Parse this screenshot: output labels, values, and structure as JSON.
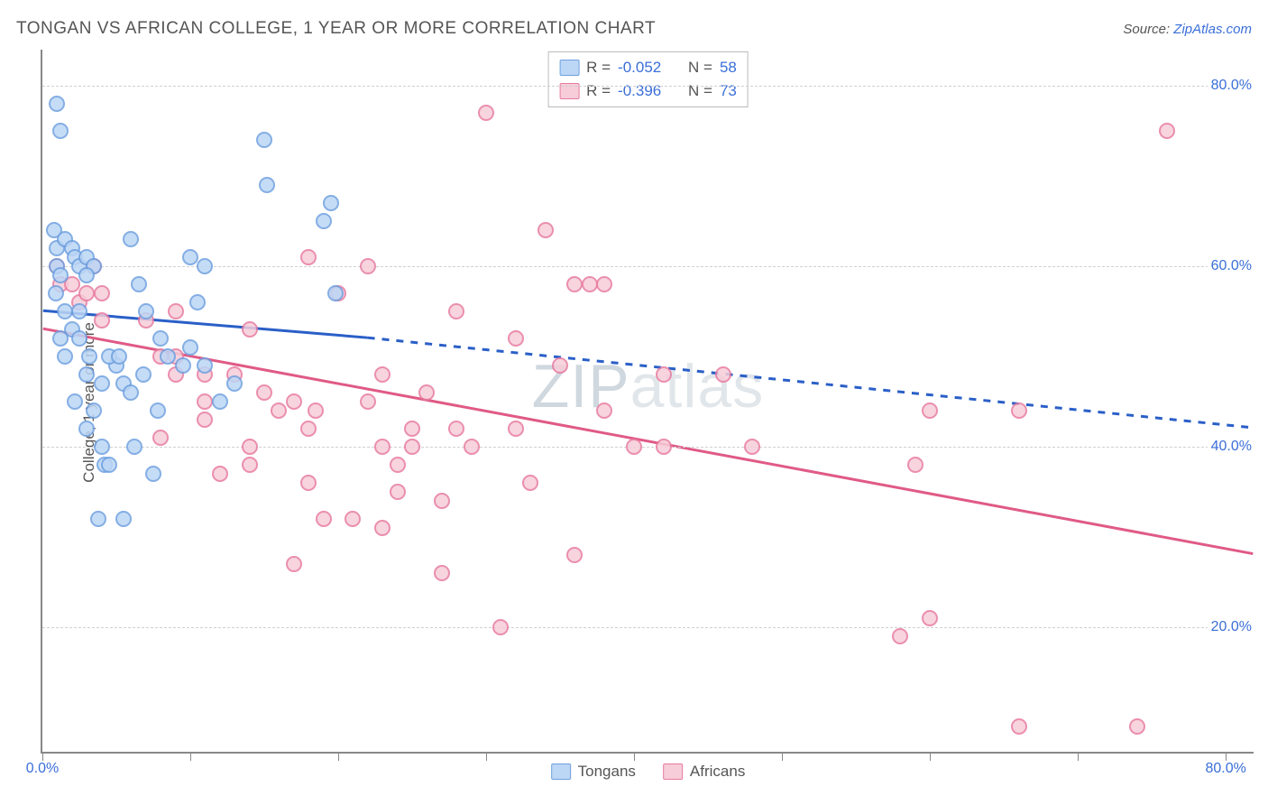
{
  "title": "TONGAN VS AFRICAN COLLEGE, 1 YEAR OR MORE CORRELATION CHART",
  "source_prefix": "Source: ",
  "source_link": "ZipAtlas.com",
  "y_axis_label": "College, 1 year or more",
  "watermark": {
    "bold": "ZIP",
    "rest": "atlas"
  },
  "chart": {
    "type": "scatter",
    "background_color": "#ffffff",
    "grid_color": "#d0d0d0",
    "axis_color": "#888888",
    "text_color": "#555555",
    "link_color": "#3a6fd8",
    "xlim": [
      0,
      82
    ],
    "ylim": [
      6,
      84
    ],
    "x_ticks": [
      0,
      10,
      20,
      30,
      40,
      50,
      60,
      70,
      80
    ],
    "x_tick_labels": {
      "0": "0.0%",
      "80": "80.0%"
    },
    "y_gridlines": [
      20,
      40,
      60,
      80
    ],
    "y_tick_labels": {
      "20": "20.0%",
      "40": "40.0%",
      "60": "60.0%",
      "80": "80.0%"
    },
    "marker_size": 18,
    "marker_border_width": 2,
    "line_width": 3
  },
  "legend_top": {
    "r_label": "R =",
    "n_label": "N =",
    "rows": [
      {
        "series": "tongans",
        "r": "-0.052",
        "n": "58"
      },
      {
        "series": "africans",
        "r": "-0.396",
        "n": "73"
      }
    ]
  },
  "legend_bottom": [
    {
      "series": "tongans",
      "label": "Tongans"
    },
    {
      "series": "africans",
      "label": "Africans"
    }
  ],
  "series": {
    "tongans": {
      "fill": "#bcd6f5",
      "stroke": "#6fa0e0",
      "trend": {
        "x1": 0,
        "y1": 55,
        "x_solid_end": 22,
        "y_solid_end": 52,
        "x2": 82,
        "y2": 42
      },
      "points": [
        [
          1,
          78
        ],
        [
          1.2,
          75
        ],
        [
          0.8,
          64
        ],
        [
          1,
          62
        ],
        [
          1.5,
          63
        ],
        [
          2,
          62
        ],
        [
          2.2,
          61
        ],
        [
          2.5,
          60
        ],
        [
          1,
          60
        ],
        [
          1.2,
          59
        ],
        [
          3,
          61
        ],
        [
          3.5,
          60
        ],
        [
          3,
          59
        ],
        [
          0.9,
          57
        ],
        [
          1.5,
          55
        ],
        [
          2.5,
          55
        ],
        [
          6,
          63
        ],
        [
          6.5,
          58
        ],
        [
          7,
          55
        ],
        [
          4,
          47
        ],
        [
          5,
          49
        ],
        [
          5.5,
          47
        ],
        [
          6,
          46
        ],
        [
          6.8,
          48
        ],
        [
          4,
          40
        ],
        [
          4.2,
          38
        ],
        [
          3.5,
          44
        ],
        [
          3,
          48
        ],
        [
          3.2,
          50
        ],
        [
          1.2,
          52
        ],
        [
          1.5,
          50
        ],
        [
          2,
          53
        ],
        [
          2.5,
          52
        ],
        [
          4.5,
          50
        ],
        [
          5.2,
          50
        ],
        [
          8,
          52
        ],
        [
          8.5,
          50
        ],
        [
          9.5,
          49
        ],
        [
          10,
          51
        ],
        [
          11,
          49
        ],
        [
          13,
          47
        ],
        [
          12,
          45
        ],
        [
          11,
          60
        ],
        [
          15,
          74
        ],
        [
          15.2,
          69
        ],
        [
          19,
          65
        ],
        [
          19.5,
          67
        ],
        [
          19.8,
          57
        ],
        [
          3.8,
          32
        ],
        [
          4.5,
          38
        ],
        [
          5.5,
          32
        ],
        [
          7.5,
          37
        ],
        [
          3,
          42
        ],
        [
          2.2,
          45
        ],
        [
          10.5,
          56
        ],
        [
          10,
          61
        ],
        [
          7.8,
          44
        ],
        [
          6.2,
          40
        ]
      ]
    },
    "africans": {
      "fill": "#f6cdd9",
      "stroke": "#e87ba0",
      "trend": {
        "x1": 0,
        "y1": 53,
        "x_solid_end": 82,
        "y_solid_end": 28,
        "x2": 82,
        "y2": 28
      },
      "points": [
        [
          1,
          60
        ],
        [
          1.2,
          58
        ],
        [
          2,
          58
        ],
        [
          2.5,
          56
        ],
        [
          3,
          57
        ],
        [
          4,
          57
        ],
        [
          8,
          50
        ],
        [
          9,
          50
        ],
        [
          9,
          48
        ],
        [
          11,
          48
        ],
        [
          13,
          48
        ],
        [
          14,
          53
        ],
        [
          15,
          46
        ],
        [
          16,
          44
        ],
        [
          17,
          45
        ],
        [
          18,
          42
        ],
        [
          18.5,
          44
        ],
        [
          18,
          61
        ],
        [
          20,
          57
        ],
        [
          22,
          45
        ],
        [
          23,
          40
        ],
        [
          24,
          38
        ],
        [
          25,
          40
        ],
        [
          24,
          35
        ],
        [
          27,
          34
        ],
        [
          28,
          42
        ],
        [
          29,
          40
        ],
        [
          30,
          77
        ],
        [
          32,
          42
        ],
        [
          33,
          36
        ],
        [
          27,
          26
        ],
        [
          22,
          60
        ],
        [
          11,
          43
        ],
        [
          12,
          37
        ],
        [
          14,
          40
        ],
        [
          8,
          41
        ],
        [
          17,
          27
        ],
        [
          34,
          64
        ],
        [
          36,
          58
        ],
        [
          37,
          58
        ],
        [
          35,
          49
        ],
        [
          32,
          52
        ],
        [
          38,
          44
        ],
        [
          40,
          40
        ],
        [
          42,
          40
        ],
        [
          46,
          48
        ],
        [
          48,
          40
        ],
        [
          60,
          44
        ],
        [
          59,
          38
        ],
        [
          60,
          21
        ],
        [
          58,
          19
        ],
        [
          66,
          44
        ],
        [
          74,
          9
        ],
        [
          66,
          9
        ],
        [
          76,
          75
        ],
        [
          18,
          36
        ],
        [
          19,
          32
        ],
        [
          21,
          32
        ],
        [
          23,
          31
        ],
        [
          14,
          38
        ],
        [
          11,
          45
        ],
        [
          9,
          55
        ],
        [
          7,
          54
        ],
        [
          4,
          54
        ],
        [
          3.5,
          60
        ],
        [
          26,
          46
        ],
        [
          25,
          42
        ],
        [
          28,
          55
        ],
        [
          38,
          58
        ],
        [
          42,
          48
        ],
        [
          31,
          20
        ],
        [
          36,
          28
        ],
        [
          23,
          48
        ]
      ]
    }
  }
}
